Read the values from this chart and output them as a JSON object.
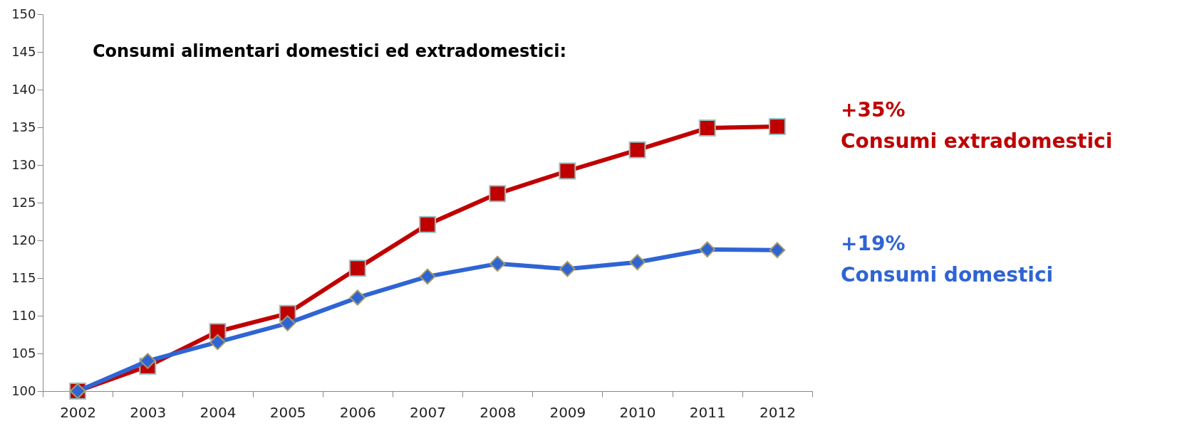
{
  "chart_data": {
    "type": "line",
    "title": "Consumi alimentari domestici ed extradomestici:",
    "categories": [
      "2002",
      "2003",
      "2004",
      "2005",
      "2006",
      "2007",
      "2008",
      "2009",
      "2010",
      "2011",
      "2012"
    ],
    "series": [
      {
        "name": "Consumi extradomestici",
        "color": "#c00000",
        "marker": "square",
        "values": [
          100,
          103.3,
          107.9,
          110.3,
          116.3,
          122.1,
          126.2,
          129.2,
          132.0,
          134.9,
          135.1
        ]
      },
      {
        "name": "Consumi domestici",
        "color": "#2f64d4",
        "marker": "diamond",
        "values": [
          100,
          104.0,
          106.5,
          109.0,
          112.4,
          115.2,
          116.9,
          116.2,
          117.1,
          118.8,
          118.7
        ]
      }
    ],
    "annotations": [
      "+35%",
      "+19%"
    ],
    "ylim": [
      100,
      150
    ],
    "yticks": [
      100,
      105,
      110,
      115,
      120,
      125,
      130,
      135,
      140,
      145,
      150
    ],
    "grid": false,
    "line_style": "solid"
  }
}
